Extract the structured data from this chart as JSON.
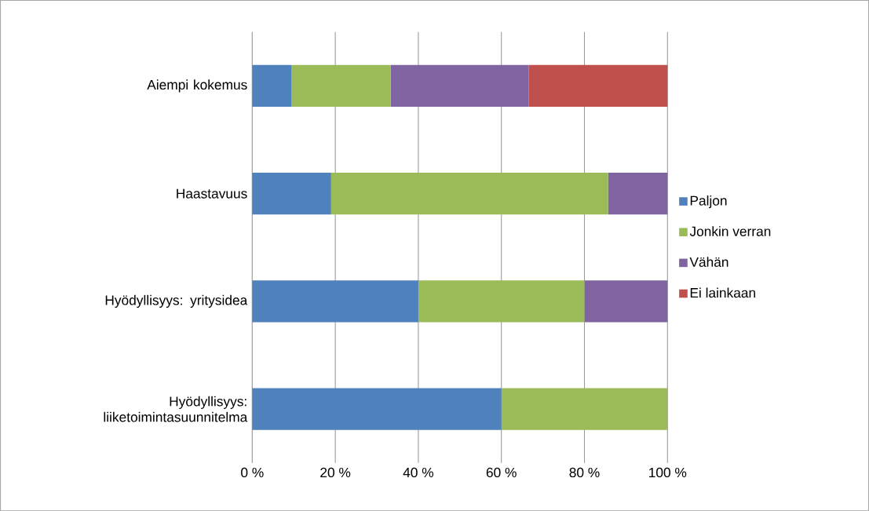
{
  "chart_data": {
    "type": "bar",
    "orientation": "horizontal",
    "stacked": true,
    "categories": [
      "Aiempi kokemus",
      "Haastavuus",
      "Hyödyllisyys: yritysidea",
      "Hyödyllisyys: liiketoimintasuunnitelma"
    ],
    "series": [
      {
        "name": "Paljon",
        "color": "#4f81bd",
        "values": [
          9.5,
          19,
          40,
          60
        ]
      },
      {
        "name": "Jonkin verran",
        "color": "#9bbb59",
        "values": [
          23.8,
          66.7,
          40,
          40
        ]
      },
      {
        "name": "Vähän",
        "color": "#8064a2",
        "values": [
          33.3,
          14.3,
          20,
          null
        ]
      },
      {
        "name": "Ei lainkaan",
        "color": "#c0504d",
        "values": [
          33.4,
          null,
          null,
          null
        ]
      }
    ],
    "xlim": [
      0,
      100
    ],
    "xticks": [
      {
        "value": 0,
        "label": "0 %"
      },
      {
        "value": 20,
        "label": "20 %"
      },
      {
        "value": 40,
        "label": "40 %"
      },
      {
        "value": 60,
        "label": "60 %"
      },
      {
        "value": 80,
        "label": "80 %"
      },
      {
        "value": 100,
        "label": "100 %"
      }
    ],
    "grid": "x",
    "legend": "right"
  }
}
